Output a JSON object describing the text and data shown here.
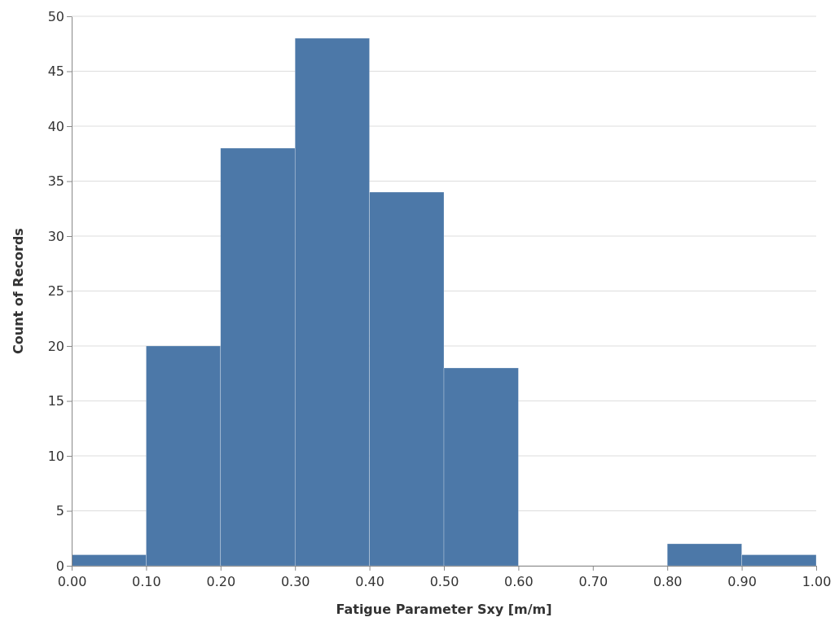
{
  "chart_data": {
    "type": "histogram",
    "xlabel": "Fatigue Parameter Sxy [m/m]",
    "ylabel": "Count of Records",
    "bins": [
      0,
      0.1,
      0.2,
      0.3,
      0.4,
      0.5,
      0.6,
      0.7,
      0.8,
      0.9,
      1.0
    ],
    "values": [
      1,
      20,
      38,
      48,
      34,
      18,
      0,
      0,
      2,
      1
    ],
    "color": "#4c78a8",
    "xlim": [
      0,
      1
    ],
    "xticks": [
      {
        "value": 0,
        "label": "0.00"
      },
      {
        "value": 0.1,
        "label": "0.10"
      },
      {
        "value": 0.2,
        "label": "0.20"
      },
      {
        "value": 0.3,
        "label": "0.30"
      },
      {
        "value": 0.4,
        "label": "0.40"
      },
      {
        "value": 0.5,
        "label": "0.50"
      },
      {
        "value": 0.6,
        "label": "0.60"
      },
      {
        "value": 0.7,
        "label": "0.70"
      },
      {
        "value": 0.8,
        "label": "0.80"
      },
      {
        "value": 0.9,
        "label": "0.90"
      },
      {
        "value": 1,
        "label": "1.00"
      }
    ],
    "ylim": [
      0,
      50
    ],
    "yticks": [
      0,
      5,
      10,
      15,
      20,
      25,
      30,
      35,
      40,
      45,
      50
    ],
    "grid": "y"
  }
}
